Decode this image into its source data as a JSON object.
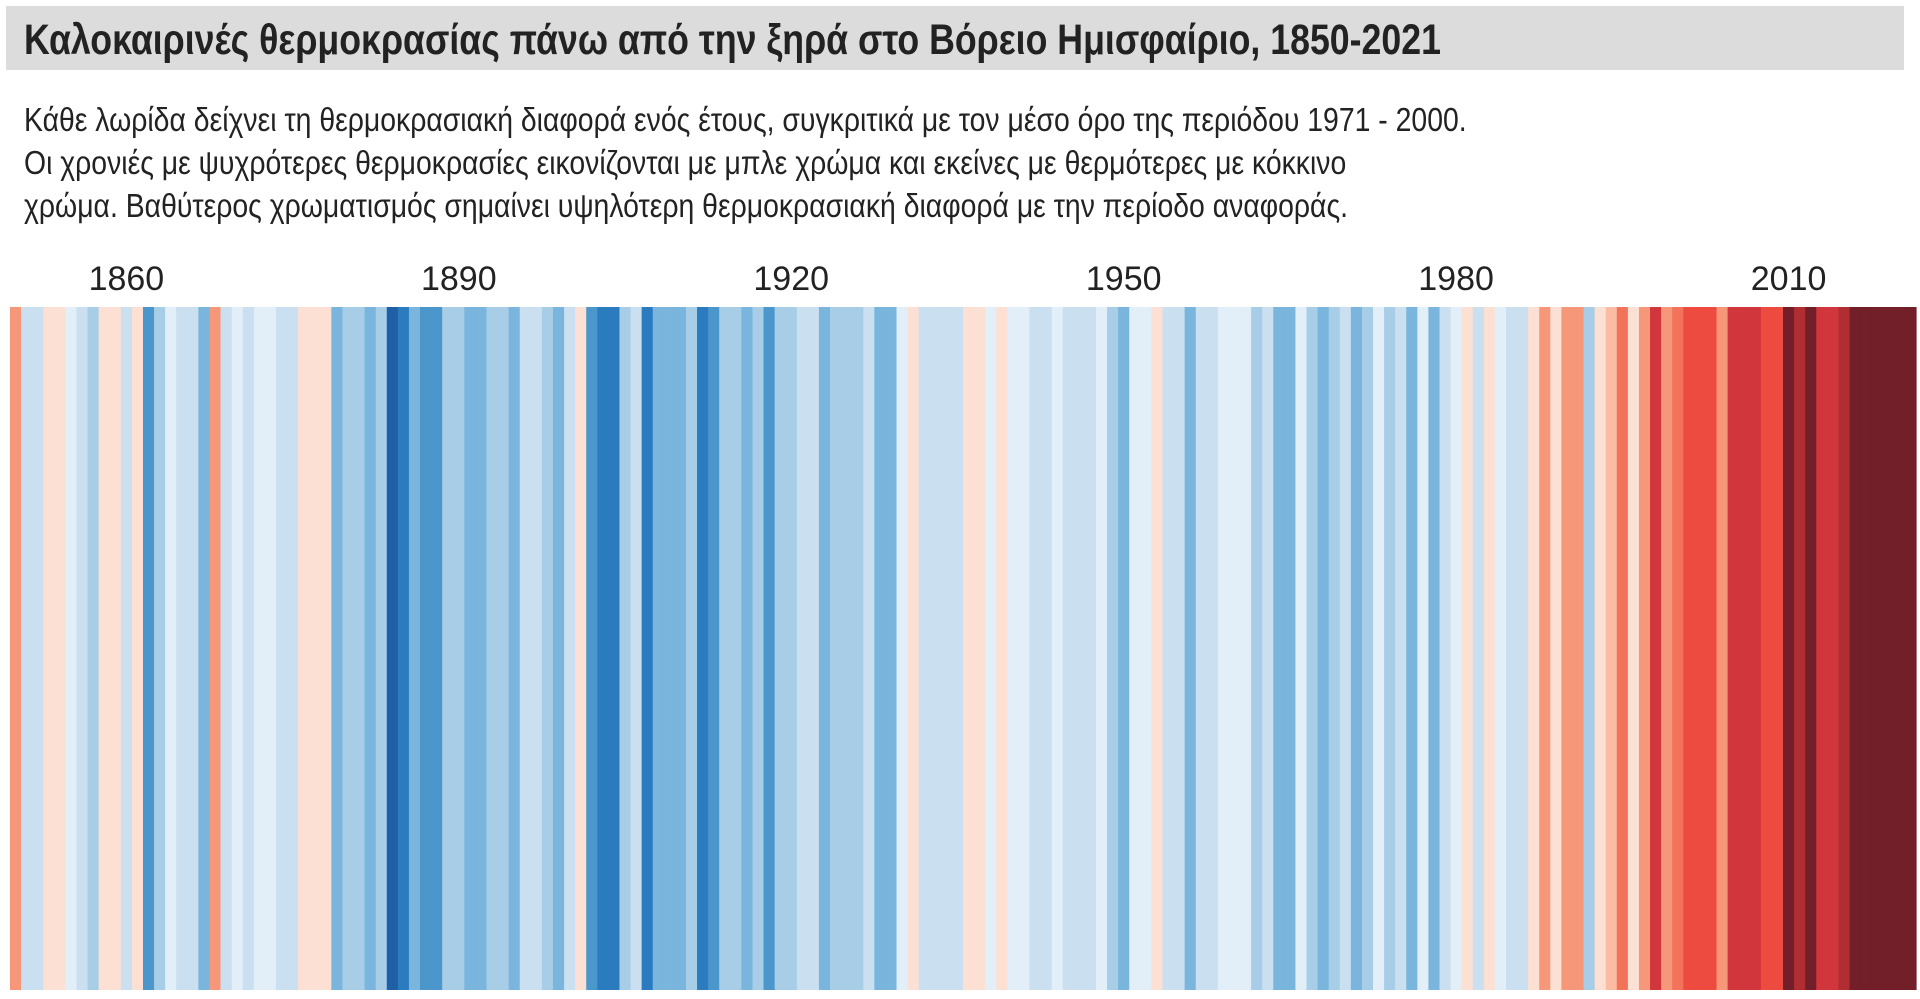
{
  "header": {
    "title": "Καλοκαιρινές θερμοκρασίας πάνω από την ξηρά στο Βόρειο Ημισφαίριο, 1850-2021",
    "subtitle_lines": [
      "Κάθε λωρίδα δείχνει τη θερμοκρασιακή διαφορά ενός έτους, συγκριτικά με τον μέσο όρο της περιόδου 1971 - 2000.",
      "Οι χρονιές με ψυχρότερες θερμοκρασίες εικονίζονται με μπλε χρώμα και εκείνες με θερμότερες με κόκκινο",
      "χρώμα. Βαθύτερος χρωματισμός σημαίνει υψηλότερη θερμοκρασιακή διαφορά με την περίοδο αναφοράς."
    ]
  },
  "chart_data": {
    "type": "heatmap",
    "title": "Καλοκαιρινές θερμοκρασίας πάνω από την ξηρά στο Βόρειο Ημισφαίριο, 1850-2021",
    "x_start": 1850,
    "x_end": 2021,
    "tick_labels": [
      "1860",
      "1890",
      "1920",
      "1950",
      "1980",
      "2010"
    ],
    "value_meaning": "relative anomaly level vs 1971-2000 mean (negative = cooler/blue, positive = warmer/red)",
    "levels": [
      3,
      -2,
      -2,
      1,
      1,
      -1,
      -2,
      -3,
      1,
      1,
      -2,
      1,
      -5,
      -3,
      -1,
      -2,
      -2,
      -4,
      3,
      -2,
      -1,
      -2,
      -1,
      -1,
      -2,
      -2,
      1,
      1,
      1,
      -4,
      -3,
      -3,
      -4,
      -3,
      -7,
      -6,
      -4,
      -5,
      -5,
      -3,
      -3,
      -4,
      -4,
      -3,
      -3,
      -4,
      -2,
      -2,
      -3,
      -4,
      -2,
      1,
      -5,
      -6,
      -6,
      -3,
      -2,
      -6,
      -4,
      -4,
      -4,
      -3,
      -6,
      -5,
      -3,
      -3,
      -4,
      -3,
      -5,
      -3,
      -3,
      -2,
      -2,
      -4,
      -3,
      -3,
      -3,
      -2,
      -4,
      -4,
      -1,
      1,
      -2,
      -2,
      -2,
      -2,
      1,
      1,
      -1,
      1,
      -1,
      -1,
      -2,
      -2,
      -1,
      -2,
      -2,
      -2,
      -1,
      -3,
      -4,
      -1,
      -1,
      1,
      -2,
      -2,
      -4,
      -2,
      -2,
      -1,
      -1,
      -1,
      -3,
      -2,
      -4,
      -4,
      -1,
      -3,
      -4,
      -3,
      -2,
      -4,
      -3,
      -1,
      -3,
      -2,
      -4,
      -1,
      -4,
      -2,
      -1,
      1,
      -2,
      1,
      -1,
      -2,
      -2,
      1,
      3,
      1,
      3,
      3,
      -3,
      1,
      2,
      4,
      1,
      3,
      6,
      3,
      4,
      5,
      5,
      5,
      3,
      6,
      6,
      6,
      5,
      5,
      8,
      7,
      8,
      6,
      6,
      7,
      8,
      8,
      8,
      8,
      8,
      8
    ],
    "colors": {
      "-7": "#1f5fa6",
      "-6": "#2b7bbf",
      "-5": "#4b96cb",
      "-4": "#79b5dc",
      "-3": "#a8cde6",
      "-2": "#cadff0",
      "-1": "#e2eef8",
      "1": "#fde0d4",
      "2": "#fbbca3",
      "3": "#f6977a",
      "4": "#f2735a",
      "5": "#ee4b40",
      "6": "#d0363b",
      "7": "#b02e32",
      "8": "#721f29"
    },
    "grid": false,
    "legend": "none"
  }
}
